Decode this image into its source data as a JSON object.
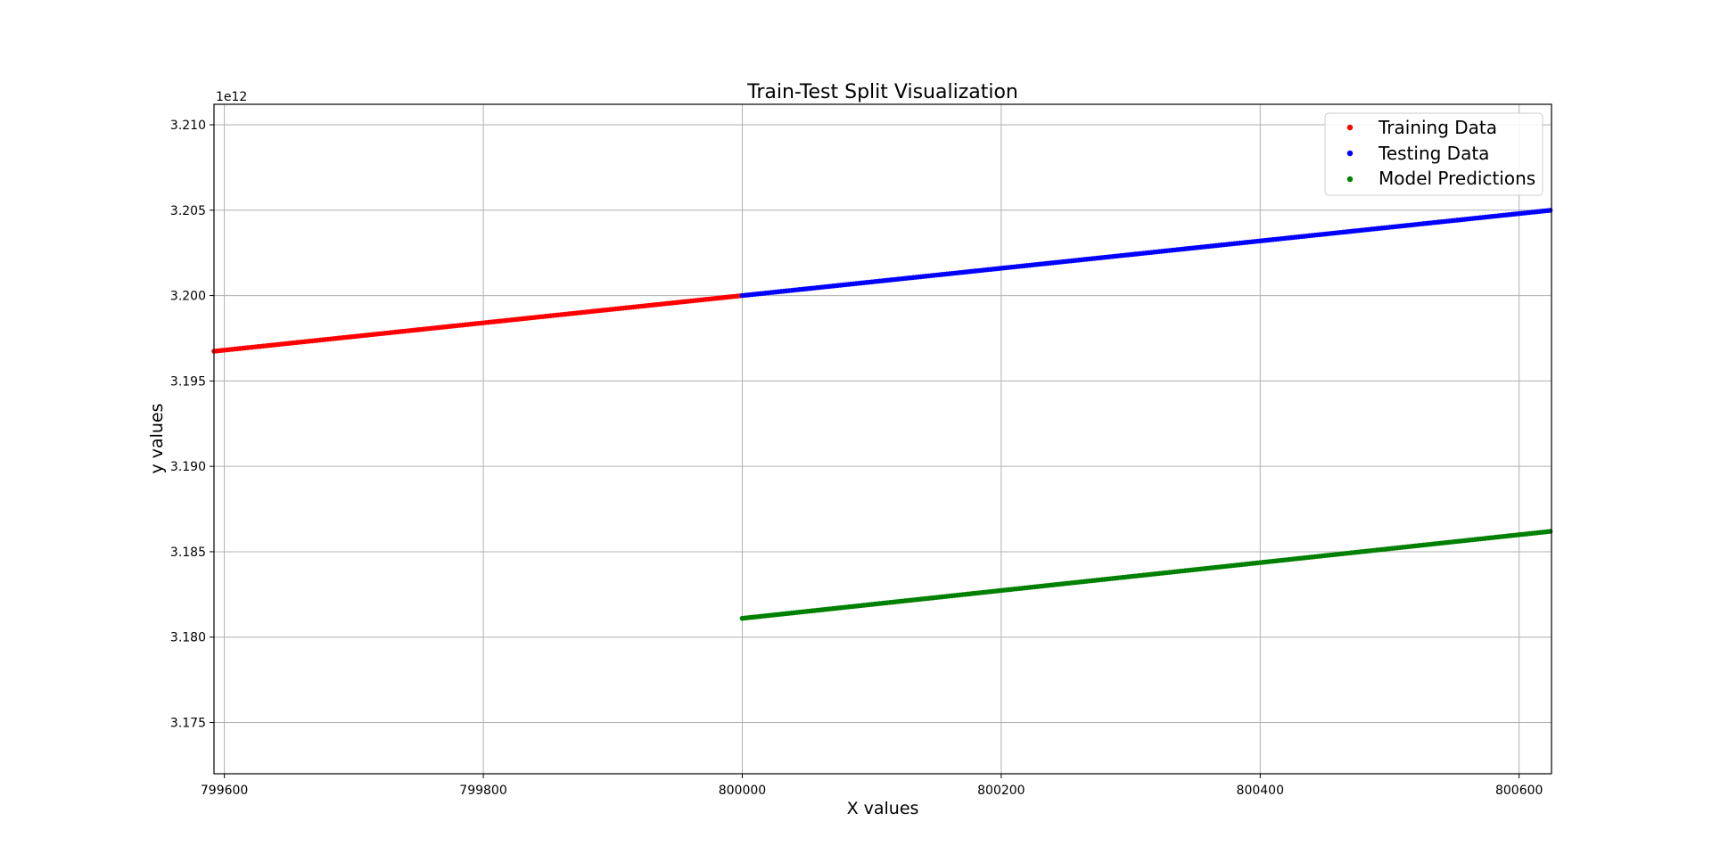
{
  "chart_data": {
    "type": "scatter",
    "title": "Train-Test Split Visualization",
    "xlabel": "X values",
    "ylabel": "y values",
    "y_offset_label": "1e12",
    "xlim": [
      799592,
      800625
    ],
    "ylim": [
      3.172,
      3.2112
    ],
    "x_ticks": [
      799600,
      799800,
      800000,
      800200,
      800400,
      800600
    ],
    "y_ticks": [
      3.175,
      3.18,
      3.185,
      3.19,
      3.195,
      3.2,
      3.205,
      3.21
    ],
    "grid": true,
    "legend_position": "top-right",
    "series": [
      {
        "name": "Training Data",
        "color": "#ff0000",
        "x_range": [
          799592,
          800000
        ],
        "y_range": [
          3.19674,
          3.2
        ],
        "point_step": 2
      },
      {
        "name": "Testing Data",
        "color": "#0000ff",
        "x_range": [
          800000,
          800625
        ],
        "y_range": [
          3.2,
          3.205
        ],
        "point_step": 2
      },
      {
        "name": "Model Predictions",
        "color": "#008000",
        "x_range": [
          800000,
          800625
        ],
        "y_range": [
          3.1811,
          3.1862
        ],
        "point_step": 2
      }
    ]
  }
}
